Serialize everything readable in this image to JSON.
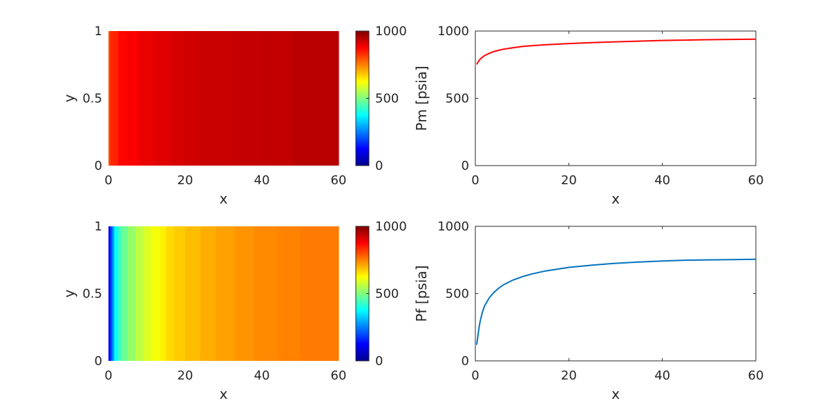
{
  "chart_data": [
    {
      "type": "heatmap",
      "xlabel": "x",
      "ylabel": "y",
      "xlim": [
        0,
        60
      ],
      "ylim": [
        0,
        1
      ],
      "xticks": [
        "0",
        "20",
        "40",
        "60"
      ],
      "yticks": [
        "0",
        "0.5",
        "1"
      ],
      "colorbar": {
        "range": [
          0,
          1000
        ],
        "ticks": [
          "0",
          "500",
          "1000"
        ],
        "colormap": "jet"
      },
      "bands": [
        {
          "x0": 0,
          "x1": 0.5,
          "value": 800
        },
        {
          "x0": 0.5,
          "x1": 2.5,
          "value": 840
        },
        {
          "x0": 2.5,
          "x1": 5,
          "value": 870
        },
        {
          "x0": 5,
          "x1": 8,
          "value": 880
        },
        {
          "x0": 8,
          "x1": 12,
          "value": 895
        },
        {
          "x0": 12,
          "x1": 16,
          "value": 905
        },
        {
          "x0": 16,
          "x1": 20,
          "value": 915
        },
        {
          "x0": 20,
          "x1": 24,
          "value": 920
        },
        {
          "x0": 24,
          "x1": 32,
          "value": 928
        },
        {
          "x0": 32,
          "x1": 40,
          "value": 932
        },
        {
          "x0": 40,
          "x1": 48,
          "value": 935
        },
        {
          "x0": 48,
          "x1": 60,
          "value": 945
        }
      ]
    },
    {
      "type": "line",
      "xlabel": "x",
      "ylabel": "Pm [psia]",
      "xlim": [
        0,
        60
      ],
      "ylim": [
        0,
        1000
      ],
      "xticks": [
        "0",
        "20",
        "40",
        "60"
      ],
      "yticks": [
        "0",
        "500",
        "1000"
      ],
      "color": "#ff0000",
      "x": [
        0.3,
        0.6,
        1,
        1.5,
        2,
        3,
        4,
        5,
        6,
        8,
        10,
        12,
        15,
        20,
        25,
        30,
        35,
        40,
        45,
        50,
        55,
        60
      ],
      "y": [
        752,
        772,
        790,
        805,
        818,
        835,
        848,
        857,
        865,
        876,
        885,
        891,
        898,
        907,
        914,
        920,
        925,
        930,
        933,
        936,
        938,
        940
      ]
    },
    {
      "type": "heatmap",
      "xlabel": "x",
      "ylabel": "y",
      "xlim": [
        0,
        60
      ],
      "ylim": [
        0,
        1
      ],
      "xticks": [
        "0",
        "20",
        "40",
        "60"
      ],
      "yticks": [
        "0",
        "0.5",
        "1"
      ],
      "colorbar": {
        "range": [
          0,
          1000
        ],
        "ticks": [
          "0",
          "500",
          "1000"
        ],
        "colormap": "jet"
      },
      "bands": [
        {
          "x0": 0,
          "x1": 0.5,
          "value": 125
        },
        {
          "x0": 0.5,
          "x1": 1,
          "value": 200
        },
        {
          "x0": 1,
          "x1": 1.5,
          "value": 280
        },
        {
          "x0": 1.5,
          "x1": 2.5,
          "value": 380
        },
        {
          "x0": 2.5,
          "x1": 3.5,
          "value": 440
        },
        {
          "x0": 3.5,
          "x1": 5,
          "value": 480
        },
        {
          "x0": 5,
          "x1": 7,
          "value": 520
        },
        {
          "x0": 7,
          "x1": 9,
          "value": 560
        },
        {
          "x0": 9,
          "x1": 11,
          "value": 590
        },
        {
          "x0": 11,
          "x1": 13.5,
          "value": 615
        },
        {
          "x0": 13.5,
          "x1": 15,
          "value": 640
        },
        {
          "x0": 15,
          "x1": 17,
          "value": 660
        },
        {
          "x0": 17,
          "x1": 20,
          "value": 675
        },
        {
          "x0": 20,
          "x1": 24,
          "value": 690
        },
        {
          "x0": 24,
          "x1": 28,
          "value": 705
        },
        {
          "x0": 28,
          "x1": 33,
          "value": 718
        },
        {
          "x0": 33,
          "x1": 38,
          "value": 730
        },
        {
          "x0": 38,
          "x1": 44,
          "value": 740
        },
        {
          "x0": 44,
          "x1": 50,
          "value": 748
        },
        {
          "x0": 50,
          "x1": 60,
          "value": 755
        }
      ]
    },
    {
      "type": "line",
      "xlabel": "x",
      "ylabel": "Pf [psia]",
      "xlim": [
        0,
        60
      ],
      "ylim": [
        0,
        1000
      ],
      "xticks": [
        "0",
        "20",
        "40",
        "60"
      ],
      "yticks": [
        "0",
        "500",
        "1000"
      ],
      "color": "#0072bd",
      "x": [
        0.3,
        0.5,
        0.8,
        1,
        1.5,
        2,
        3,
        4,
        5,
        6,
        8,
        10,
        12,
        15,
        20,
        25,
        30,
        35,
        40,
        45,
        50,
        55,
        60
      ],
      "y": [
        120,
        175,
        250,
        290,
        360,
        410,
        470,
        510,
        540,
        565,
        600,
        625,
        645,
        668,
        695,
        712,
        725,
        735,
        742,
        748,
        751,
        753,
        755
      ]
    }
  ]
}
